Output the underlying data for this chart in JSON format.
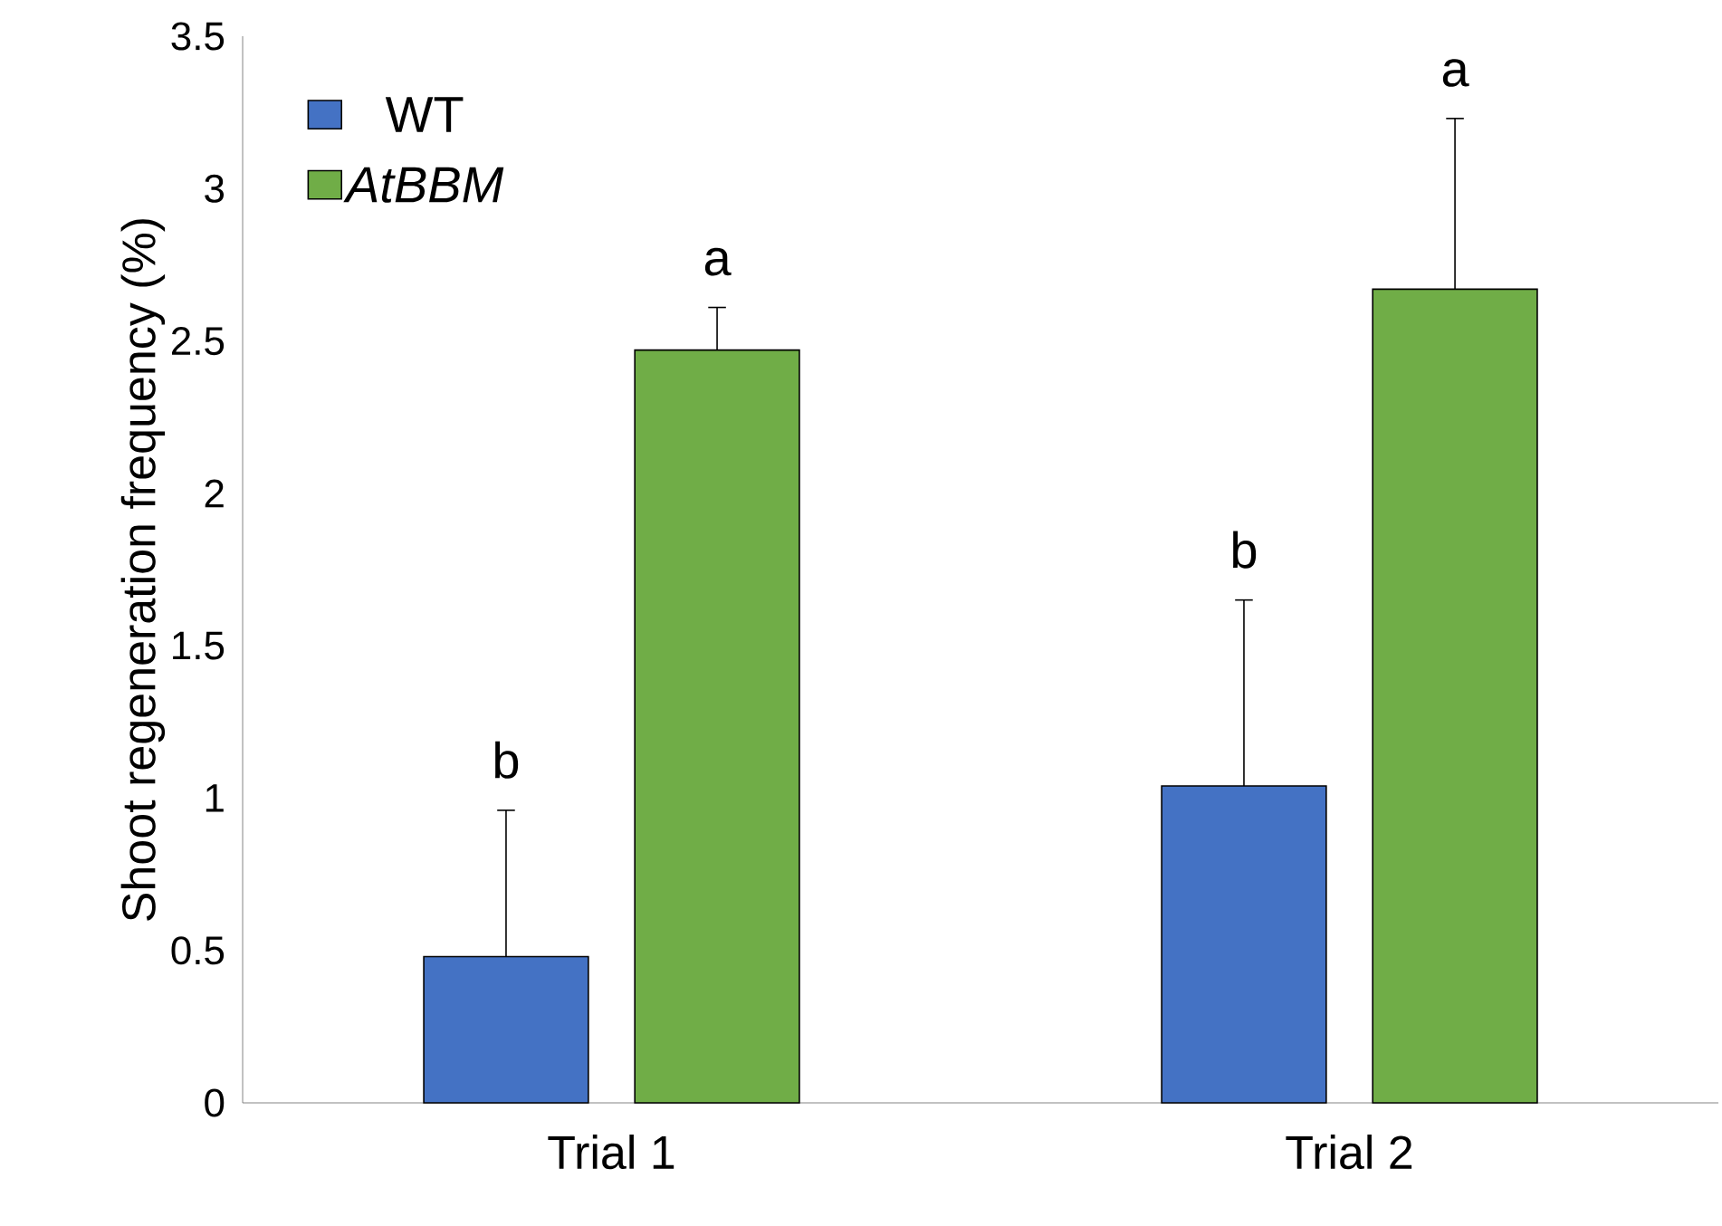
{
  "chart_data": {
    "type": "bar",
    "ylabel": "Shoot regeneration frequency (%)",
    "categories": [
      "Trial 1",
      "Trial 2"
    ],
    "series": [
      {
        "name": "WT",
        "color": "#4472c4",
        "values": [
          0.48,
          1.04
        ],
        "errors": [
          [
            0.48,
            0.96
          ],
          [
            1.04,
            1.65
          ]
        ]
      },
      {
        "name": "*AtBBM*",
        "color": "#70ad47",
        "values": [
          2.47,
          2.67
        ],
        "errors": [
          [
            2.47,
            2.61
          ],
          [
            2.67,
            3.23
          ]
        ]
      }
    ],
    "ylim": [
      0,
      3.5
    ],
    "yticks": [
      0,
      0.5,
      1,
      1.5,
      2,
      2.5,
      3,
      3.5
    ],
    "grid": false,
    "legend": "top left",
    "annotations": [
      "b",
      "a",
      "b",
      "a"
    ]
  }
}
